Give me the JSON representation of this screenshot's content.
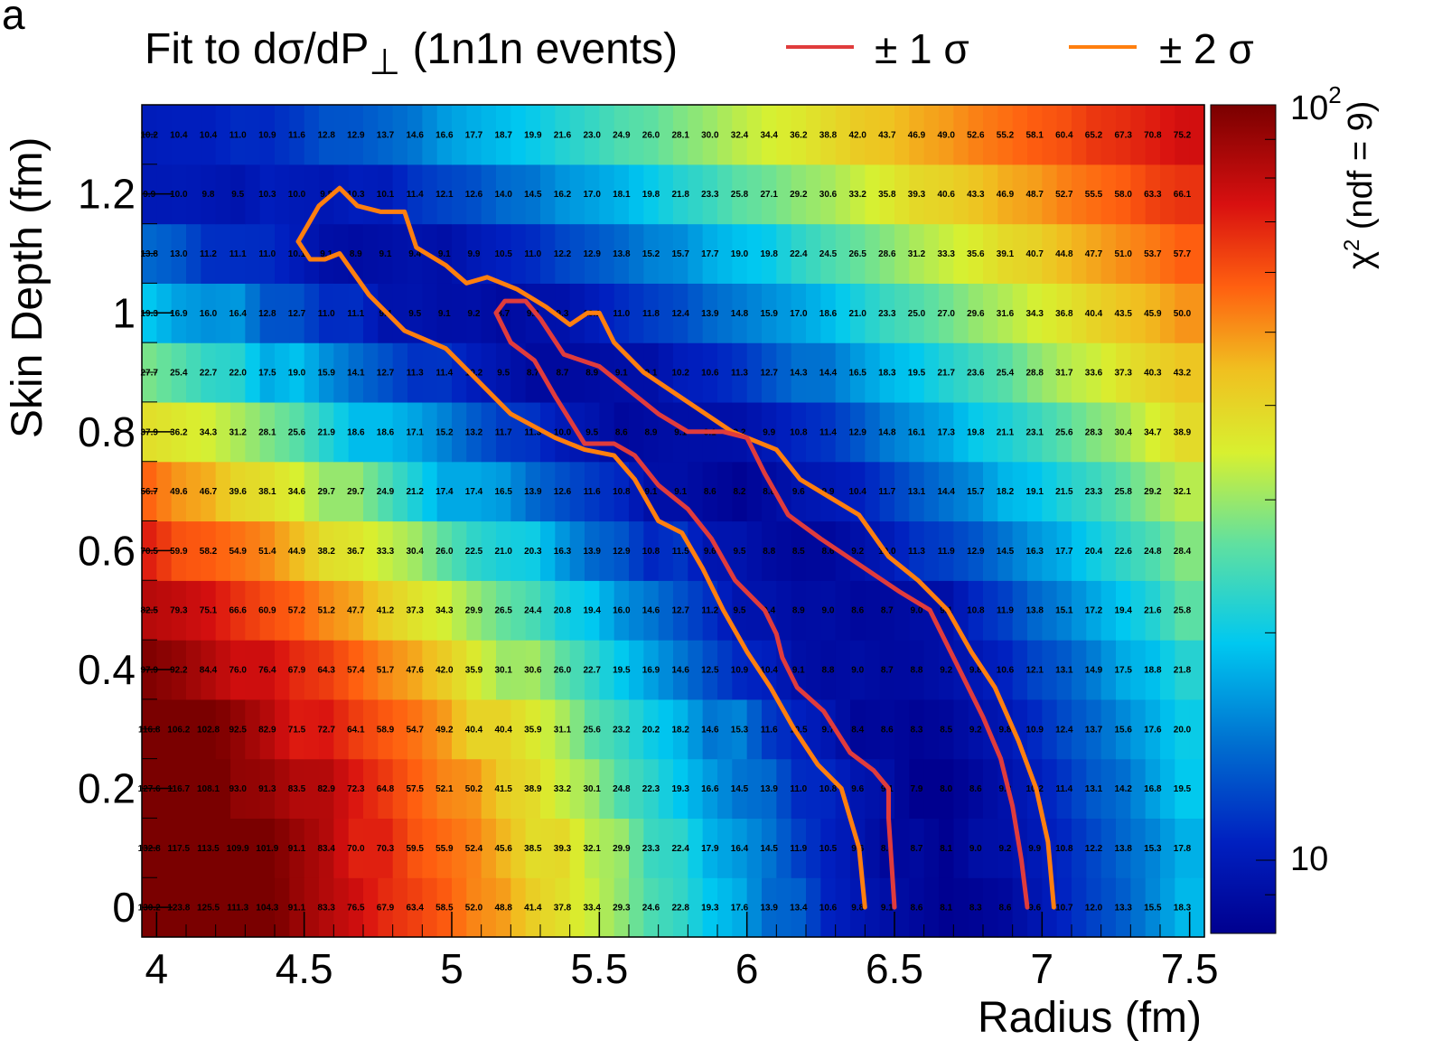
{
  "panel_label": "a",
  "title": {
    "main": "Fit to dσ/dP",
    "sub": "⊥",
    "rest": " (1n1n events)"
  },
  "legend": [
    {
      "label": "± 1 σ",
      "color": "#e03c3c"
    },
    {
      "label": "± 2 σ",
      "color": "#ff7f0e"
    }
  ],
  "colorbar": {
    "label_chi": "χ",
    "label_sup": "2",
    "label_rest": " (ndf = 9)",
    "tick_top_base": "10",
    "tick_top_exp": "2",
    "tick_bottom": "10"
  },
  "chart_data": {
    "type": "heatmap",
    "x_axis_label": "Radius (fm)",
    "y_axis_label": "Skin Depth (fm)",
    "x_ticks": [
      "4",
      "4.5",
      "5",
      "5.5",
      "6",
      "6.5",
      "7",
      "7.5"
    ],
    "y_ticks": [
      "0",
      "0.2",
      "0.4",
      "0.6",
      "0.8",
      "1",
      "1.2"
    ],
    "xlim": [
      3.95,
      7.55
    ],
    "ylim": [
      -0.05,
      1.35
    ],
    "x_centers": [
      4.0,
      4.1,
      4.2,
      4.3,
      4.4,
      4.5,
      4.6,
      4.7,
      4.8,
      4.9,
      5.0,
      5.1,
      5.2,
      5.3,
      5.4,
      5.5,
      5.6,
      5.7,
      5.8,
      5.9,
      6.0,
      6.1,
      6.2,
      6.3,
      6.4,
      6.5,
      6.6,
      6.7,
      6.8,
      6.9,
      7.0,
      7.1,
      7.2,
      7.3,
      7.4,
      7.5
    ],
    "y_centers": [
      0,
      0.1,
      0.2,
      0.3,
      0.4,
      0.5,
      0.6,
      0.7,
      0.8,
      0.9,
      1.0,
      1.1,
      1.2,
      1.3
    ],
    "z_scale": "log",
    "zlim": [
      8,
      100
    ],
    "z_label": "χ2 (ndf = 9)",
    "labeled_columns": [
      0,
      2,
      4,
      6,
      8,
      10,
      12,
      14,
      16,
      18,
      20,
      22,
      24,
      26,
      28,
      30,
      32,
      34,
      36,
      38,
      40,
      42,
      44,
      46,
      48,
      50,
      52,
      54,
      56,
      58,
      60,
      62,
      64,
      66,
      68,
      70
    ],
    "rows": [
      [
        130.2,
        123.8,
        125.5,
        111.3,
        104.3,
        91.1,
        83.3,
        76.5,
        67.9,
        63.4,
        58.5,
        52.0,
        48.8,
        41.4,
        37.8,
        33.4,
        29.3,
        24.6,
        22.8,
        19.3,
        17.6,
        13.9,
        13.4,
        10.6,
        9.8,
        9.1,
        8.6,
        8.1,
        8.3,
        8.6,
        9.6,
        10.7,
        12.0,
        13.3,
        15.5,
        18.3
      ],
      [
        132.8,
        117.5,
        113.5,
        109.9,
        101.9,
        91.1,
        83.4,
        70.0,
        70.3,
        59.5,
        55.9,
        52.4,
        45.6,
        38.5,
        39.3,
        32.1,
        29.9,
        23.3,
        22.4,
        17.9,
        16.4,
        14.5,
        11.9,
        10.5,
        9.6,
        8.5,
        8.7,
        8.1,
        9.0,
        9.2,
        9.9,
        10.8,
        12.2,
        13.8,
        15.3,
        17.8
      ],
      [
        127.6,
        116.7,
        108.1,
        93.0,
        91.3,
        83.5,
        82.9,
        72.3,
        64.8,
        57.5,
        52.1,
        50.2,
        41.5,
        38.9,
        33.2,
        30.1,
        24.8,
        22.3,
        19.3,
        16.6,
        14.5,
        13.9,
        11.0,
        10.8,
        9.6,
        9.1,
        7.9,
        8.0,
        8.6,
        9.3,
        10.2,
        11.4,
        13.1,
        14.2,
        16.8,
        19.5
      ],
      [
        116.8,
        106.2,
        102.8,
        92.5,
        82.9,
        71.5,
        72.7,
        64.1,
        58.9,
        54.7,
        49.2,
        40.4,
        40.4,
        35.9,
        31.1,
        25.6,
        23.2,
        20.2,
        18.2,
        14.6,
        15.3,
        11.6,
        10.5,
        9.7,
        8.4,
        8.6,
        8.3,
        8.5,
        9.2,
        9.8,
        10.9,
        12.4,
        13.7,
        15.6,
        17.6,
        20.0
      ],
      [
        97.9,
        92.2,
        84.4,
        76.0,
        76.4,
        67.9,
        64.3,
        57.4,
        51.7,
        47.6,
        42.0,
        35.9,
        30.1,
        30.6,
        26.0,
        22.7,
        19.5,
        16.9,
        14.6,
        12.5,
        10.9,
        10.4,
        9.1,
        8.8,
        9.0,
        8.7,
        8.8,
        9.2,
        9.8,
        10.6,
        12.1,
        13.1,
        14.9,
        17.5,
        18.8,
        21.8
      ],
      [
        82.5,
        79.3,
        75.1,
        66.6,
        60.9,
        57.2,
        51.2,
        47.7,
        41.2,
        37.3,
        34.3,
        29.9,
        26.5,
        24.4,
        20.8,
        19.4,
        16.0,
        14.6,
        12.7,
        11.2,
        9.5,
        9.4,
        8.9,
        9.0,
        8.6,
        8.7,
        9.0,
        9.1,
        10.8,
        11.9,
        13.8,
        15.1,
        17.2,
        19.4,
        21.6,
        25.8
      ],
      [
        70.5,
        59.9,
        58.2,
        54.9,
        51.4,
        44.9,
        38.2,
        36.7,
        33.3,
        30.4,
        26.0,
        22.5,
        21.0,
        20.3,
        16.3,
        13.9,
        12.9,
        10.8,
        11.5,
        9.6,
        9.5,
        8.8,
        8.5,
        8.6,
        9.2,
        10.0,
        11.3,
        11.9,
        12.9,
        14.5,
        16.3,
        17.7,
        20.4,
        22.6,
        24.8,
        28.4
      ],
      [
        56.7,
        49.6,
        46.7,
        39.6,
        38.1,
        34.6,
        29.7,
        29.7,
        24.9,
        21.2,
        17.4,
        17.4,
        16.5,
        13.9,
        12.6,
        11.6,
        10.8,
        9.1,
        9.1,
        8.6,
        8.2,
        8.8,
        9.6,
        9.9,
        10.4,
        11.7,
        13.1,
        14.4,
        15.7,
        18.2,
        19.1,
        21.5,
        23.3,
        25.8,
        29.2,
        32.1
      ],
      [
        37.9,
        36.2,
        34.3,
        31.2,
        28.1,
        25.6,
        21.9,
        18.6,
        18.6,
        17.1,
        15.2,
        13.2,
        11.7,
        11.3,
        10.0,
        9.5,
        8.6,
        8.9,
        9.1,
        9.1,
        9.2,
        9.9,
        10.8,
        11.4,
        12.9,
        14.8,
        16.1,
        17.3,
        19.8,
        21.1,
        23.1,
        25.6,
        28.3,
        30.4,
        34.7,
        38.9
      ],
      [
        27.7,
        25.4,
        22.7,
        22.0,
        17.5,
        19.0,
        15.9,
        14.1,
        12.7,
        11.3,
        11.4,
        10.2,
        9.5,
        8.7,
        8.7,
        8.9,
        9.1,
        9.1,
        10.2,
        10.6,
        11.3,
        12.7,
        14.3,
        14.4,
        16.5,
        18.3,
        19.5,
        21.7,
        23.6,
        25.4,
        28.8,
        31.7,
        33.6,
        37.3,
        40.3,
        43.2
      ],
      [
        19.3,
        16.9,
        16.0,
        16.4,
        12.8,
        12.7,
        11.0,
        11.1,
        9.4,
        9.5,
        9.1,
        9.2,
        8.7,
        9.2,
        9.3,
        10.1,
        11.0,
        11.8,
        12.4,
        13.9,
        14.8,
        15.9,
        17.0,
        18.6,
        21.0,
        23.3,
        25.0,
        27.0,
        29.6,
        31.6,
        34.3,
        36.8,
        40.4,
        43.5,
        45.9,
        50.0
      ],
      [
        13.8,
        13.0,
        11.2,
        11.1,
        11.0,
        10.1,
        9.1,
        8.9,
        9.1,
        9.4,
        9.1,
        9.9,
        10.5,
        11.0,
        12.2,
        12.9,
        13.8,
        15.2,
        15.7,
        17.7,
        19.0,
        19.8,
        22.4,
        24.5,
        26.5,
        28.6,
        31.2,
        33.3,
        35.6,
        39.1,
        40.7,
        44.8,
        47.7,
        51.0,
        53.7,
        57.7
      ],
      [
        9.9,
        10.0,
        9.8,
        9.5,
        10.3,
        10.0,
        9.8,
        10.3,
        10.1,
        11.4,
        12.1,
        12.6,
        14.0,
        14.5,
        16.2,
        17.0,
        18.1,
        19.8,
        21.8,
        23.3,
        25.8,
        27.1,
        29.2,
        30.6,
        33.2,
        35.8,
        39.3,
        40.6,
        43.3,
        46.9,
        48.7,
        52.7,
        55.5,
        58.0,
        63.3,
        66.1
      ],
      [
        10.2,
        10.4,
        10.4,
        11.0,
        10.9,
        11.6,
        12.8,
        12.9,
        13.7,
        14.6,
        16.6,
        17.7,
        18.7,
        19.9,
        21.6,
        23.0,
        24.9,
        26.0,
        28.1,
        30.0,
        32.4,
        34.4,
        36.2,
        38.8,
        42.0,
        43.7,
        46.9,
        49.0,
        52.6,
        55.2,
        58.1,
        60.4,
        65.2,
        67.3,
        70.8,
        75.2
      ]
    ],
    "contours": [
      {
        "name": "± 2 σ",
        "color": "#ff7f0e",
        "points": [
          [
            4.48,
            1.12
          ],
          [
            4.55,
            1.18
          ],
          [
            4.62,
            1.21
          ],
          [
            4.68,
            1.18
          ],
          [
            4.76,
            1.17
          ],
          [
            4.84,
            1.17
          ],
          [
            4.88,
            1.11
          ],
          [
            4.98,
            1.08
          ],
          [
            5.05,
            1.05
          ],
          [
            5.12,
            1.06
          ],
          [
            5.22,
            1.04
          ],
          [
            5.32,
            1.01
          ],
          [
            5.4,
            0.98
          ],
          [
            5.46,
            1.0
          ],
          [
            5.5,
            1.0
          ],
          [
            5.55,
            0.95
          ],
          [
            5.65,
            0.9
          ],
          [
            5.8,
            0.85
          ],
          [
            5.95,
            0.8
          ],
          [
            6.1,
            0.77
          ],
          [
            6.18,
            0.72
          ],
          [
            6.28,
            0.69
          ],
          [
            6.38,
            0.66
          ],
          [
            6.48,
            0.59
          ],
          [
            6.58,
            0.55
          ],
          [
            6.68,
            0.5
          ],
          [
            6.76,
            0.43
          ],
          [
            6.84,
            0.37
          ],
          [
            6.92,
            0.28
          ],
          [
            6.98,
            0.2
          ],
          [
            7.02,
            0.11
          ],
          [
            7.04,
            0.0
          ]
        ]
      },
      {
        "name": "± 2 σ",
        "color": "#ff7f0e",
        "points": [
          [
            4.48,
            1.12
          ],
          [
            4.52,
            1.09
          ],
          [
            4.57,
            1.09
          ],
          [
            4.62,
            1.1
          ],
          [
            4.72,
            1.03
          ],
          [
            4.84,
            0.97
          ],
          [
            4.98,
            0.94
          ],
          [
            5.1,
            0.88
          ],
          [
            5.2,
            0.83
          ],
          [
            5.35,
            0.79
          ],
          [
            5.45,
            0.77
          ],
          [
            5.55,
            0.76
          ],
          [
            5.62,
            0.72
          ],
          [
            5.7,
            0.65
          ],
          [
            5.78,
            0.63
          ],
          [
            5.85,
            0.57
          ],
          [
            5.92,
            0.5
          ],
          [
            6.0,
            0.43
          ],
          [
            6.08,
            0.37
          ],
          [
            6.16,
            0.3
          ],
          [
            6.24,
            0.24
          ],
          [
            6.32,
            0.2
          ],
          [
            6.38,
            0.1
          ],
          [
            6.4,
            0.0
          ]
        ]
      },
      {
        "name": "± 1 σ",
        "color": "#e03c3c",
        "points": [
          [
            5.15,
            1.0
          ],
          [
            5.18,
            1.02
          ],
          [
            5.25,
            1.02
          ],
          [
            5.3,
            0.99
          ],
          [
            5.38,
            0.93
          ],
          [
            5.5,
            0.91
          ],
          [
            5.6,
            0.87
          ],
          [
            5.7,
            0.83
          ],
          [
            5.8,
            0.8
          ],
          [
            5.92,
            0.8
          ],
          [
            6.0,
            0.79
          ],
          [
            6.06,
            0.73
          ],
          [
            6.14,
            0.66
          ],
          [
            6.25,
            0.62
          ],
          [
            6.4,
            0.57
          ],
          [
            6.52,
            0.53
          ],
          [
            6.62,
            0.5
          ],
          [
            6.72,
            0.4
          ],
          [
            6.8,
            0.32
          ],
          [
            6.86,
            0.25
          ],
          [
            6.9,
            0.17
          ],
          [
            6.93,
            0.08
          ],
          [
            6.95,
            0.0
          ]
        ]
      },
      {
        "name": "± 1 σ",
        "color": "#e03c3c",
        "points": [
          [
            5.15,
            1.0
          ],
          [
            5.2,
            0.95
          ],
          [
            5.28,
            0.92
          ],
          [
            5.35,
            0.86
          ],
          [
            5.4,
            0.82
          ],
          [
            5.45,
            0.78
          ],
          [
            5.55,
            0.78
          ],
          [
            5.62,
            0.76
          ],
          [
            5.7,
            0.71
          ],
          [
            5.8,
            0.67
          ],
          [
            5.88,
            0.62
          ],
          [
            5.96,
            0.55
          ],
          [
            6.06,
            0.5
          ],
          [
            6.1,
            0.46
          ],
          [
            6.12,
            0.42
          ],
          [
            6.17,
            0.37
          ],
          [
            6.26,
            0.33
          ],
          [
            6.35,
            0.26
          ],
          [
            6.43,
            0.23
          ],
          [
            6.48,
            0.2
          ],
          [
            6.48,
            0.15
          ],
          [
            6.5,
            0.0
          ]
        ]
      }
    ]
  }
}
